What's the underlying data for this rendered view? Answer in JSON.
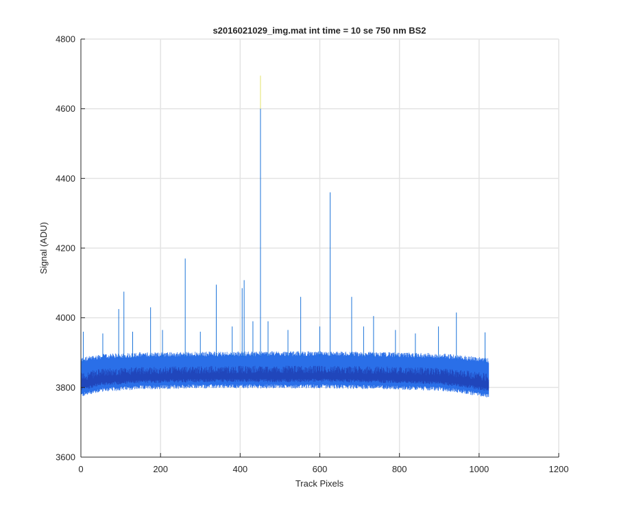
{
  "chart_data": {
    "type": "line",
    "title": "s2016021029_img.mat int time = 10 se  750 nm BS2",
    "xlabel": "Track Pixels",
    "ylabel": "Signal (ADU)",
    "xlim": [
      0,
      1200
    ],
    "ylim": [
      3600,
      4800
    ],
    "xticks": [
      0,
      200,
      400,
      600,
      800,
      1000,
      1200
    ],
    "yticks": [
      3600,
      3800,
      4000,
      4200,
      4400,
      4600,
      4800
    ],
    "grid": true,
    "x_range": [
      1,
      1024
    ],
    "band": {
      "x": [
        0,
        50,
        150,
        300,
        450,
        600,
        750,
        900,
        950,
        1000,
        1024
      ],
      "low": [
        3790,
        3805,
        3812,
        3815,
        3815,
        3815,
        3813,
        3808,
        3802,
        3793,
        3788
      ],
      "high": [
        3870,
        3880,
        3885,
        3887,
        3888,
        3888,
        3886,
        3882,
        3878,
        3872,
        3868
      ]
    },
    "spikes": [
      {
        "x": 6,
        "y": 3960
      },
      {
        "x": 55,
        "y": 3955
      },
      {
        "x": 95,
        "y": 4025
      },
      {
        "x": 108,
        "y": 4075
      },
      {
        "x": 130,
        "y": 3960
      },
      {
        "x": 175,
        "y": 4030
      },
      {
        "x": 205,
        "y": 3965
      },
      {
        "x": 262,
        "y": 4170
      },
      {
        "x": 300,
        "y": 3960
      },
      {
        "x": 340,
        "y": 4095
      },
      {
        "x": 380,
        "y": 3975
      },
      {
        "x": 405,
        "y": 4085
      },
      {
        "x": 410,
        "y": 4108
      },
      {
        "x": 432,
        "y": 3990
      },
      {
        "x": 451,
        "y": 4600
      },
      {
        "x": 470,
        "y": 3990
      },
      {
        "x": 520,
        "y": 3965
      },
      {
        "x": 552,
        "y": 4060
      },
      {
        "x": 600,
        "y": 3975
      },
      {
        "x": 626,
        "y": 4360
      },
      {
        "x": 680,
        "y": 4060
      },
      {
        "x": 710,
        "y": 3975
      },
      {
        "x": 735,
        "y": 4005
      },
      {
        "x": 790,
        "y": 3965
      },
      {
        "x": 840,
        "y": 3955
      },
      {
        "x": 898,
        "y": 3975
      },
      {
        "x": 943,
        "y": 4015
      },
      {
        "x": 1015,
        "y": 3958
      }
    ],
    "colors": {
      "band_light": "#2a6fe8",
      "band_dark": "#1f3fb3",
      "spike": "#1a73d9",
      "spike_tip": "#e2e26a",
      "grid": "#e3e3e3",
      "axis": "#262626"
    }
  }
}
